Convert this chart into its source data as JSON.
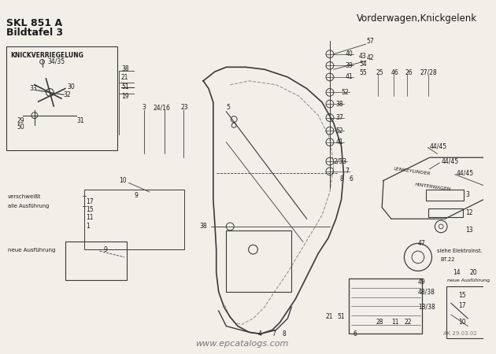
{
  "bg_color": "#f2efe9",
  "line_color": "#3a3a3a",
  "text_color": "#1a1a1a",
  "title_left1": "SKL 851 A",
  "title_left2": "Bildtafel 3",
  "title_right": "Vorderwagen,Knickgelenk",
  "watermark": "www.epcatalogs.com",
  "watermark_color": "#777777",
  "ak_text": "AK 29.03.02",
  "figsize": [
    6.3,
    4.5
  ],
  "dpi": 100
}
